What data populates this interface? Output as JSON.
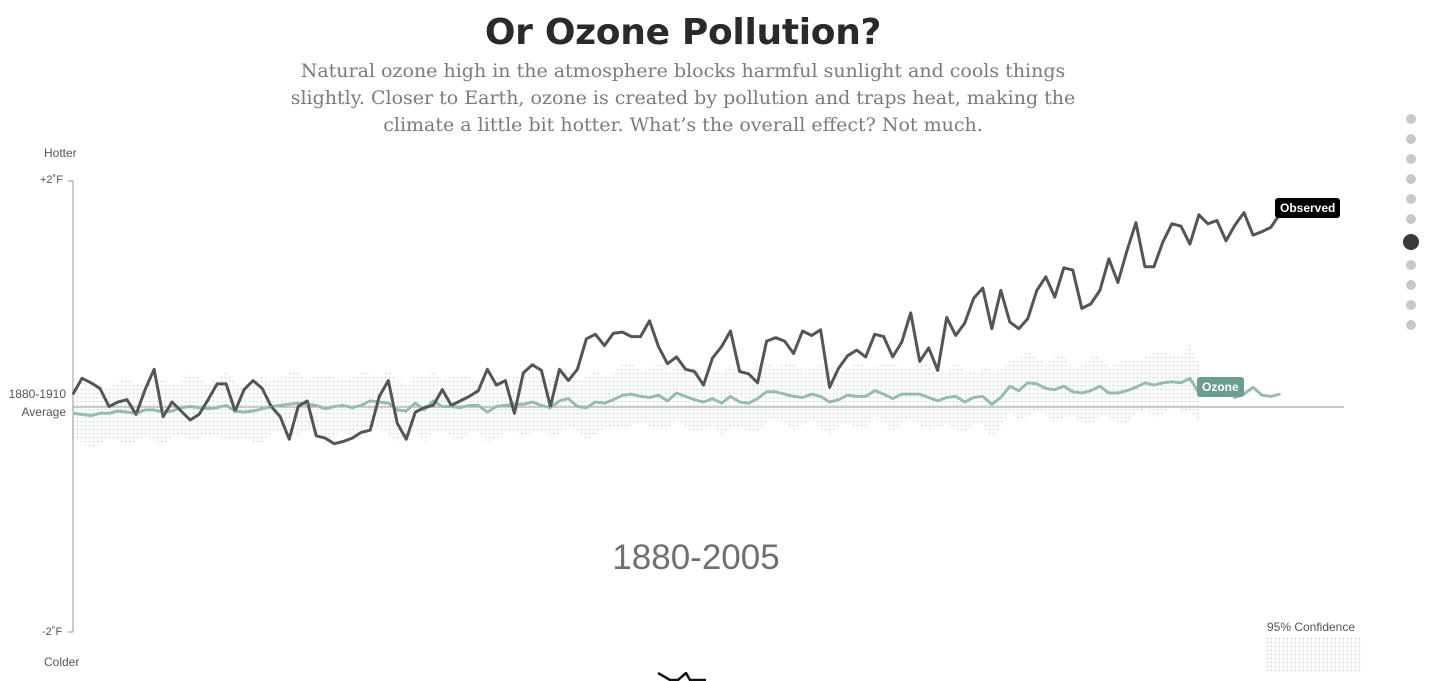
{
  "header": {
    "title": "Or Ozone Pollution?",
    "subtitle_lines": [
      "Natural ozone high in the atmosphere blocks harmful sunlight and cools things",
      "slightly. Closer to Earth, ozone is created by pollution and traps heat, making the",
      "climate a little bit hotter. What’s the overall effect? Not much."
    ]
  },
  "axis": {
    "top_word": "Hotter",
    "bottom_word": "Colder",
    "top_tick": "+2˚F",
    "bottom_tick": "-2˚F",
    "baseline_line1": "1880-1910",
    "baseline_line2": "Average"
  },
  "period_label": "1880-2005",
  "labels": {
    "observed": "Observed",
    "ozone": "Ozone",
    "confidence": "95% Confidence"
  },
  "nav": {
    "count": 11,
    "active_index": 6
  },
  "colors": {
    "observed": "#555555",
    "ozone": "#95bcb3",
    "ozone_tag": "#6b9e92",
    "band": "#b9cdc9"
  },
  "chart_data": {
    "type": "line",
    "title": "Or Ozone Pollution?",
    "xlabel": "",
    "ylabel": "",
    "x_range": [
      1880,
      2014
    ],
    "ylim": [
      -2,
      2
    ],
    "y_unit": "˚F relative to 1880-1910 average",
    "grid": false,
    "series": [
      {
        "name": "Observed",
        "x_start": 1880,
        "values": [
          0.11,
          0.25,
          0.21,
          0.16,
          0.0,
          0.04,
          0.06,
          -0.07,
          0.15,
          0.33,
          -0.09,
          0.04,
          -0.04,
          -0.12,
          -0.07,
          0.06,
          0.2,
          0.2,
          -0.04,
          0.15,
          0.23,
          0.16,
          0.0,
          -0.09,
          -0.29,
          0.0,
          0.05,
          -0.26,
          -0.28,
          -0.33,
          -0.31,
          -0.28,
          -0.23,
          -0.21,
          0.09,
          0.23,
          -0.15,
          -0.29,
          -0.05,
          -0.01,
          0.01,
          0.15,
          0.01,
          0.05,
          0.09,
          0.14,
          0.33,
          0.19,
          0.23,
          -0.06,
          0.3,
          0.37,
          0.32,
          0.0,
          0.33,
          0.23,
          0.33,
          0.6,
          0.64,
          0.54,
          0.65,
          0.66,
          0.62,
          0.62,
          0.76,
          0.53,
          0.38,
          0.44,
          0.33,
          0.31,
          0.19,
          0.43,
          0.53,
          0.67,
          0.31,
          0.29,
          0.21,
          0.58,
          0.61,
          0.58,
          0.47,
          0.67,
          0.63,
          0.68,
          0.17,
          0.34,
          0.45,
          0.5,
          0.44,
          0.64,
          0.62,
          0.44,
          0.57,
          0.83,
          0.4,
          0.52,
          0.32,
          0.79,
          0.63,
          0.74,
          0.96,
          1.05,
          0.69,
          1.03,
          0.75,
          0.69,
          0.78,
          1.03,
          1.15,
          0.97,
          1.23,
          1.21,
          0.87,
          0.91,
          1.03,
          1.31,
          1.1,
          1.38,
          1.63,
          1.24,
          1.24,
          1.46,
          1.62,
          1.6,
          1.44,
          1.7,
          1.62,
          1.65,
          1.47,
          1.61,
          1.72,
          1.52,
          1.55,
          1.59,
          1.71
        ]
      },
      {
        "name": "Ozone",
        "x_start": 1880,
        "values": [
          -0.06,
          -0.07,
          -0.08,
          -0.06,
          -0.06,
          -0.04,
          -0.05,
          -0.06,
          -0.03,
          -0.03,
          -0.05,
          -0.04,
          -0.01,
          0.0,
          -0.01,
          -0.02,
          -0.01,
          0.01,
          -0.04,
          -0.05,
          -0.04,
          -0.02,
          0.0,
          0.01,
          0.02,
          0.03,
          0.02,
          0.01,
          -0.02,
          0.0,
          0.01,
          -0.01,
          0.01,
          0.05,
          0.04,
          0.03,
          -0.03,
          -0.04,
          0.03,
          -0.03,
          0.05,
          0.0,
          0.0,
          -0.01,
          0.01,
          0.01,
          -0.05,
          0.0,
          0.01,
          0.02,
          0.02,
          0.04,
          0.01,
          -0.01,
          0.05,
          0.07,
          0.0,
          -0.01,
          0.04,
          0.03,
          0.06,
          0.1,
          0.11,
          0.09,
          0.08,
          0.1,
          0.05,
          0.12,
          0.09,
          0.06,
          0.04,
          0.07,
          0.03,
          0.09,
          0.04,
          0.03,
          0.07,
          0.13,
          0.13,
          0.11,
          0.09,
          0.08,
          0.11,
          0.09,
          0.04,
          0.06,
          0.1,
          0.09,
          0.09,
          0.14,
          0.11,
          0.07,
          0.11,
          0.11,
          0.11,
          0.08,
          0.05,
          0.08,
          0.09,
          0.04,
          0.08,
          0.09,
          0.02,
          0.08,
          0.18,
          0.14,
          0.21,
          0.2,
          0.16,
          0.15,
          0.18,
          0.13,
          0.12,
          0.14,
          0.18,
          0.12,
          0.12,
          0.14,
          0.17,
          0.21,
          0.19,
          0.21,
          0.22,
          0.21,
          0.25,
          0.12,
          0.12,
          0.15,
          0.16,
          0.08,
          0.11,
          0.17,
          0.1,
          0.09,
          0.11
        ]
      }
    ],
    "confidence_band": {
      "name": "95% Confidence",
      "x_start": 1880,
      "x_end": 2005,
      "half_width": 0.26
    },
    "legend": "inline labels at line ends; confidence swatch bottom-right"
  }
}
